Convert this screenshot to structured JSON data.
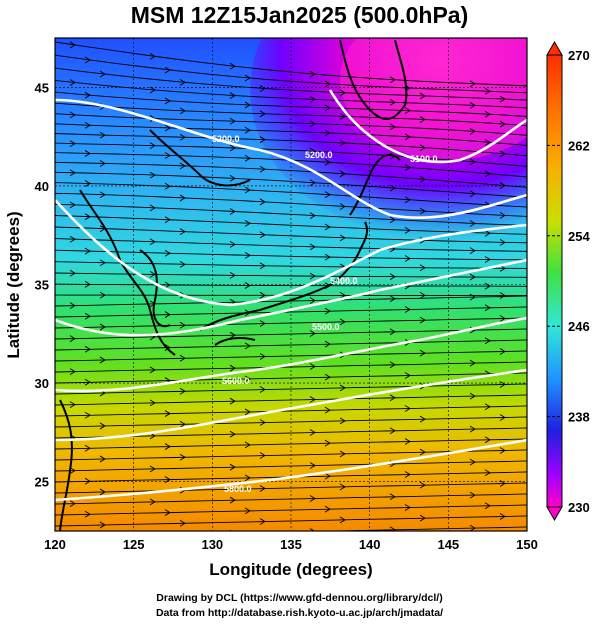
{
  "title": "MSM 12Z15Jan2025 (500.0hPa)",
  "xlabel": "Longitude (degrees)",
  "ylabel": "Latitude  (degrees)",
  "x_ticks": [
    "120",
    "125",
    "130",
    "135",
    "140",
    "145",
    "150"
  ],
  "y_ticks": [
    "25",
    "30",
    "35",
    "40",
    "45"
  ],
  "colorbar": {
    "labels": [
      "270",
      "262",
      "254",
      "246",
      "238",
      "230"
    ],
    "min": 230,
    "max": 270,
    "colors": [
      "#ff00c8",
      "#a000ff",
      "#2030ff",
      "#30b0ff",
      "#30e8e0",
      "#30e060",
      "#a8e000",
      "#f0c000",
      "#ff8000",
      "#ff3000"
    ]
  },
  "contours": [
    {
      "label": "5100.0"
    },
    {
      "label": "5200.0"
    },
    {
      "label": "5300.0"
    },
    {
      "label": "5400.0"
    },
    {
      "label": "5500.0"
    },
    {
      "label": "5600.0"
    },
    {
      "label": "5800.0"
    }
  ],
  "credit_line1": "Drawing by DCL (https://www.gfd-dennou.org/library/dcl/)",
  "credit_line2": "Data from http://database.rish.kyoto-u.ac.jp/arch/jmadata/",
  "chart_data": {
    "type": "heatmap",
    "variable": "temperature (K) shaded, geopotential height contours, wind streamlines",
    "xlim": [
      120,
      150
    ],
    "ylim": [
      22.5,
      47.5
    ],
    "value_range": [
      230,
      270
    ]
  }
}
